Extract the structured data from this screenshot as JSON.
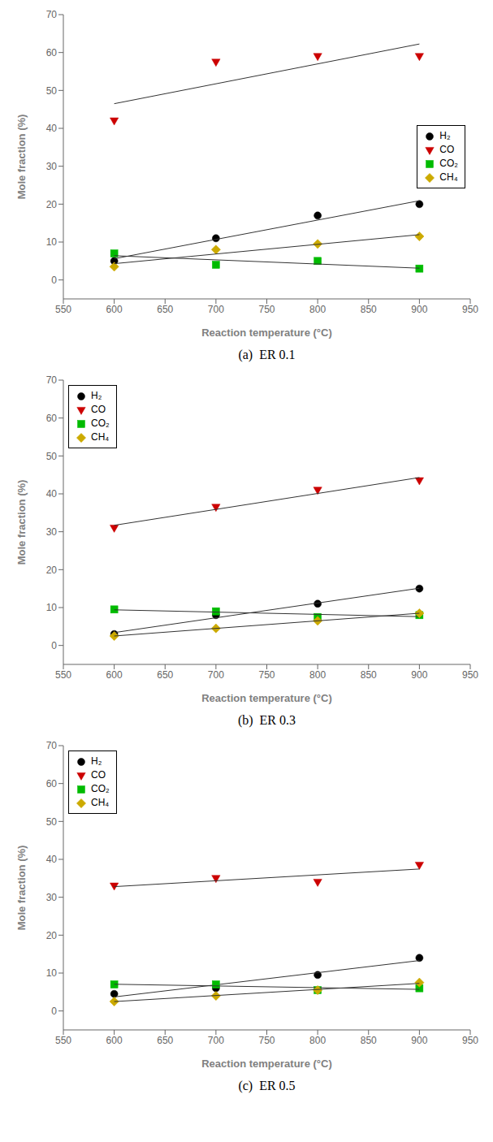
{
  "chart_data": [
    {
      "type": "scatter",
      "title": "(a)  ER 0.1",
      "xlabel": "Reaction temperature (°C)",
      "ylabel": "Mole fraction (%)",
      "x": [
        600,
        700,
        800,
        900
      ],
      "series": [
        {
          "name": "H₂",
          "color": "#000000",
          "marker": "circle",
          "values": [
            5.0,
            11.0,
            17.0,
            20.0
          ]
        },
        {
          "type": "line",
          "color": "#333333",
          "x": [
            600,
            900
          ],
          "values": [
            5.6,
            20.9
          ]
        },
        {
          "name": "CO",
          "color": "#cc0000",
          "marker": "triangle-down",
          "values": [
            42.0,
            57.5,
            59.0,
            59.0
          ]
        },
        {
          "type": "line",
          "color": "#333333",
          "x": [
            600,
            900
          ],
          "values": [
            46.5,
            62.25
          ]
        },
        {
          "name": "CO₂",
          "color": "#00bb00",
          "marker": "square",
          "values": [
            7.0,
            4.0,
            5.0,
            3.0
          ]
        },
        {
          "type": "line",
          "color": "#333333",
          "x": [
            600,
            900
          ],
          "values": [
            6.4,
            3.1
          ]
        },
        {
          "name": "CH₄",
          "color": "#ccaa00",
          "marker": "diamond",
          "values": [
            3.5,
            8.0,
            9.5,
            11.5
          ]
        },
        {
          "type": "line",
          "color": "#333333",
          "x": [
            600,
            900
          ],
          "values": [
            4.3,
            11.95
          ]
        }
      ],
      "xlim": [
        550,
        950
      ],
      "xticks": [
        550,
        600,
        650,
        700,
        750,
        800,
        850,
        900,
        950
      ],
      "ylim": [
        -5,
        70
      ],
      "yticks": [
        0,
        10,
        20,
        30,
        40,
        50,
        60,
        70
      ],
      "legend": "right",
      "grid": false
    },
    {
      "type": "scatter",
      "title": "(b)  ER 0.3",
      "xlabel": "Reaction temperature (°C)",
      "ylabel": "Mole fraction (%)",
      "x": [
        600,
        700,
        800,
        900
      ],
      "series": [
        {
          "name": "H₂",
          "color": "#000000",
          "marker": "circle",
          "values": [
            3.0,
            8.0,
            11.0,
            15.0
          ]
        },
        {
          "type": "line",
          "color": "#333333",
          "x": [
            600,
            900
          ],
          "values": [
            3.4,
            15.1
          ]
        },
        {
          "name": "CO",
          "color": "#cc0000",
          "marker": "triangle-down",
          "values": [
            31.0,
            36.5,
            41.0,
            43.5
          ]
        },
        {
          "type": "line",
          "color": "#333333",
          "x": [
            600,
            900
          ],
          "values": [
            31.7,
            44.3
          ]
        },
        {
          "name": "CO₂",
          "color": "#00bb00",
          "marker": "square",
          "values": [
            9.5,
            9.0,
            7.5,
            8.0
          ]
        },
        {
          "type": "line",
          "color": "#333333",
          "x": [
            600,
            900
          ],
          "values": [
            9.4,
            7.6
          ]
        },
        {
          "name": "CH₄",
          "color": "#ccaa00",
          "marker": "diamond",
          "values": [
            2.5,
            4.5,
            6.5,
            8.5
          ]
        },
        {
          "type": "line",
          "color": "#333333",
          "x": [
            600,
            900
          ],
          "values": [
            2.5,
            8.5
          ]
        }
      ],
      "xlim": [
        550,
        950
      ],
      "xticks": [
        550,
        600,
        650,
        700,
        750,
        800,
        850,
        900,
        950
      ],
      "ylim": [
        -5,
        70
      ],
      "yticks": [
        0,
        10,
        20,
        30,
        40,
        50,
        60,
        70
      ],
      "legend": "upper left",
      "grid": false
    },
    {
      "type": "scatter",
      "title": "(c)  ER 0.5",
      "xlabel": "Reaction temperature (°C)",
      "ylabel": "Mole fraction (%)",
      "x": [
        600,
        700,
        800,
        900
      ],
      "series": [
        {
          "name": "H₂",
          "color": "#000000",
          "marker": "circle",
          "values": [
            4.5,
            6.0,
            9.5,
            14.0
          ]
        },
        {
          "type": "line",
          "color": "#333333",
          "x": [
            600,
            900
          ],
          "values": [
            3.7,
            13.3
          ]
        },
        {
          "name": "CO",
          "color": "#cc0000",
          "marker": "triangle-down",
          "values": [
            33.0,
            35.0,
            34.0,
            38.5
          ]
        },
        {
          "type": "line",
          "color": "#333333",
          "x": [
            600,
            900
          ],
          "values": [
            32.8,
            37.45
          ]
        },
        {
          "name": "CO₂",
          "color": "#00bb00",
          "marker": "square",
          "values": [
            7.0,
            7.0,
            5.5,
            6.0
          ]
        },
        {
          "type": "line",
          "color": "#333333",
          "x": [
            600,
            900
          ],
          "values": [
            7.05,
            5.7
          ]
        },
        {
          "name": "CH₄",
          "color": "#ccaa00",
          "marker": "diamond",
          "values": [
            2.5,
            4.0,
            5.5,
            7.5
          ]
        },
        {
          "type": "line",
          "color": "#333333",
          "x": [
            600,
            900
          ],
          "values": [
            2.475,
            7.275
          ]
        }
      ],
      "xlim": [
        550,
        950
      ],
      "xticks": [
        550,
        600,
        650,
        700,
        750,
        800,
        850,
        900,
        950
      ],
      "ylim": [
        -5,
        70
      ],
      "yticks": [
        0,
        10,
        20,
        30,
        40,
        50,
        60,
        70
      ],
      "legend": "upper left",
      "grid": false
    }
  ]
}
